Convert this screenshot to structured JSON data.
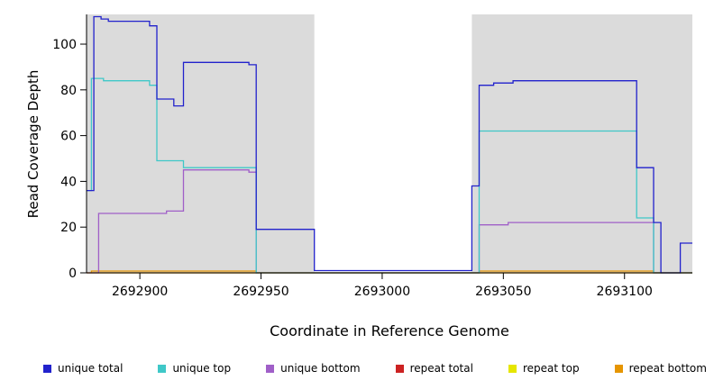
{
  "chart_data": {
    "type": "line",
    "title": "",
    "xlabel": "Coordinate in Reference Genome",
    "ylabel": "Read Coverage Depth",
    "xlim": [
      2692878,
      2693128
    ],
    "ylim": [
      0,
      113
    ],
    "x_ticks": [
      2692900,
      2692950,
      2693000,
      2693050,
      2693100
    ],
    "y_ticks": [
      0,
      20,
      40,
      60,
      80,
      100
    ],
    "grid": false,
    "legend_position": "bottom",
    "plot_background": "#dbdbdb",
    "white_band_x": [
      2692972,
      2693037
    ],
    "axis_color": "#000000",
    "series": [
      {
        "name": "repeat total",
        "color": "#cc2222",
        "points": [
          [
            2692878,
            0
          ],
          [
            2693128,
            0
          ]
        ]
      },
      {
        "name": "repeat top",
        "color": "#e6e600",
        "points": [
          [
            2692878,
            0
          ],
          [
            2693128,
            0
          ]
        ]
      },
      {
        "name": "repeat bottom",
        "color": "#e69500",
        "points": [
          [
            2692880,
            0
          ],
          [
            2692880,
            0.8
          ],
          [
            2692948,
            0.8
          ],
          [
            2692948,
            0
          ],
          [
            2693040,
            0
          ],
          [
            2693040,
            0.8
          ],
          [
            2693112,
            0.8
          ],
          [
            2693112,
            0
          ],
          [
            2693128,
            0
          ]
        ]
      },
      {
        "name": "unique bottom",
        "color": "#a express05fc8",
        "points": []
      },
      {
        "name": "unique top",
        "color": "#3fc8c8",
        "points": []
      },
      {
        "name": "unique total",
        "color": "#2222cc",
        "points": []
      }
    ],
    "series_fix": {
      "unique bottom": {
        "color": "#a express05fc8"
      }
    },
    "unique_bottom_points": [
      [
        2692878,
        0
      ],
      [
        2692883,
        0
      ],
      [
        2692883,
        26
      ],
      [
        2692911,
        26
      ],
      [
        2692911,
        27
      ],
      [
        2692918,
        27
      ],
      [
        2692918,
        45
      ],
      [
        2692945,
        45
      ],
      [
        2692945,
        44
      ],
      [
        2692948,
        44
      ],
      [
        2692948,
        0
      ],
      [
        2693040,
        0
      ],
      [
        2693040,
        21
      ],
      [
        2693052,
        21
      ],
      [
        2693052,
        22
      ],
      [
        2693112,
        22
      ],
      [
        2693112,
        0
      ],
      [
        2693128,
        0
      ]
    ],
    "unique_top_points": [
      [
        2692878,
        36
      ],
      [
        2692880,
        36
      ],
      [
        2692880,
        85
      ],
      [
        2692885,
        85
      ],
      [
        2692885,
        84
      ],
      [
        2692904,
        84
      ],
      [
        2692904,
        82
      ],
      [
        2692907,
        82
      ],
      [
        2692907,
        49
      ],
      [
        2692918,
        49
      ],
      [
        2692918,
        46
      ],
      [
        2692948,
        46
      ],
      [
        2692948,
        0
      ],
      [
        2693040,
        0
      ],
      [
        2693040,
        62
      ],
      [
        2693105,
        62
      ],
      [
        2693105,
        24
      ],
      [
        2693112,
        24
      ],
      [
        2693112,
        0
      ],
      [
        2693128,
        0
      ]
    ],
    "unique_total_points": [
      [
        2692878,
        36
      ],
      [
        2692881,
        36
      ],
      [
        2692881,
        112
      ],
      [
        2692884,
        112
      ],
      [
        2692884,
        111
      ],
      [
        2692887,
        111
      ],
      [
        2692887,
        110
      ],
      [
        2692904,
        110
      ],
      [
        2692904,
        108
      ],
      [
        2692907,
        108
      ],
      [
        2692907,
        76
      ],
      [
        2692914,
        76
      ],
      [
        2692914,
        73
      ],
      [
        2692918,
        73
      ],
      [
        2692918,
        92
      ],
      [
        2692945,
        92
      ],
      [
        2692945,
        91
      ],
      [
        2692948,
        91
      ],
      [
        2692948,
        19
      ],
      [
        2692972,
        19
      ],
      [
        2692972,
        1
      ],
      [
        2693037,
        1
      ],
      [
        2693037,
        38
      ],
      [
        2693040,
        38
      ],
      [
        2693040,
        82
      ],
      [
        2693046,
        82
      ],
      [
        2693046,
        83
      ],
      [
        2693054,
        83
      ],
      [
        2693054,
        84
      ],
      [
        2693105,
        84
      ],
      [
        2693105,
        46
      ],
      [
        2693112,
        46
      ],
      [
        2693112,
        22
      ],
      [
        2693115,
        22
      ],
      [
        2693115,
        0
      ],
      [
        2693123,
        0
      ],
      [
        2693123,
        13
      ],
      [
        2693128,
        13
      ]
    ],
    "unique_bottom_color": "#a05fc8",
    "legend": [
      {
        "label": "unique total",
        "color": "#2222cc"
      },
      {
        "label": "unique top",
        "color": "#3fc8c8"
      },
      {
        "label": "unique bottom",
        "color": "#a05fc8"
      },
      {
        "label": "repeat total",
        "color": "#cc2222"
      },
      {
        "label": "repeat top",
        "color": "#e6e600"
      },
      {
        "label": "repeat bottom",
        "color": "#e69500"
      }
    ]
  }
}
